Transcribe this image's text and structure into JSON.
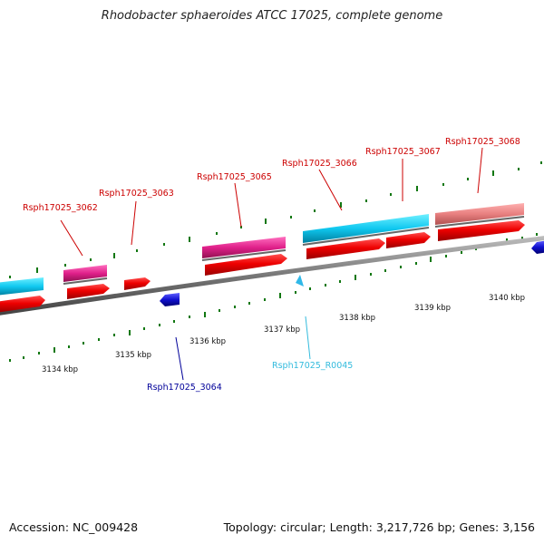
{
  "header": {
    "title": "Rhodobacter sphaeroides ATCC 17025, complete genome"
  },
  "footer": {
    "accession": "Accession: NC_009428",
    "topology": "Topology: circular; Length: 3,217,726 bp; Genes: 3,156"
  },
  "scale": {
    "ticks": [
      "3134 kbp",
      "3135 kbp",
      "3136 kbp",
      "3137 kbp",
      "3138 kbp",
      "3139 kbp",
      "3140 kbp"
    ]
  },
  "genes": {
    "forward": [
      {
        "label": "Rsph17025_3062",
        "color": "#cc0000"
      },
      {
        "label": "Rsph17025_3063",
        "color": "#cc0000"
      },
      {
        "label": "Rsph17025_3065",
        "color": "#cc0000"
      },
      {
        "label": "Rsph17025_3066",
        "color": "#cc0000"
      },
      {
        "label": "Rsph17025_3067",
        "color": "#cc0000"
      },
      {
        "label": "Rsph17025_3068",
        "color": "#cc0000"
      }
    ],
    "reverse": [
      {
        "label": "Rsph17025_3064",
        "color": "#000099"
      },
      {
        "label": "Rsph17025_R0045",
        "color": "#33bbdd"
      }
    ]
  },
  "colors": {
    "cds_red": "#e8000b",
    "gene_magenta": "#e0208a",
    "gene_cyan": "#10c8f0",
    "gene_pink": "#e88080",
    "reverse_blue": "#1010d0",
    "rna_cyan": "#30b8e8",
    "backbone": "#777777",
    "tick_green": "#117711"
  }
}
